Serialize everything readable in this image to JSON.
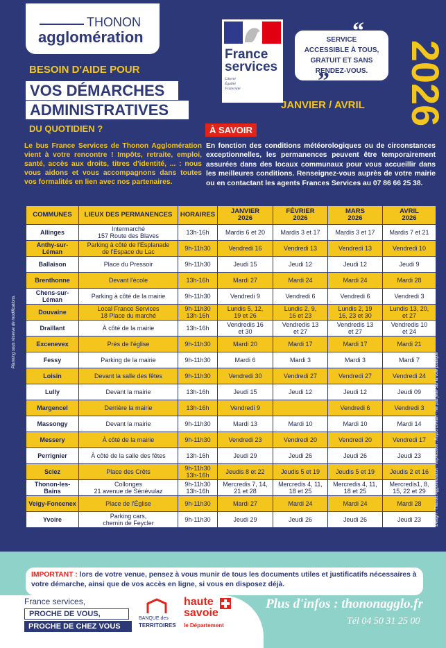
{
  "header": {
    "logo": {
      "line1": "THONON",
      "line2": "agglomération"
    },
    "help": {
      "line1": "BESOIN D'AIDE POUR",
      "line2": "VOS DÉMARCHES",
      "line3": "ADMINISTRATIVES",
      "line4": "DU QUOTIDIEN ?"
    },
    "france_services": {
      "line1": "France",
      "line2": "services",
      "motto": "Liberté\nÉgalité\nFraternité"
    },
    "bubble": "SERVICE\nACCESSIBLE À TOUS,\nGRATUIT ET SANS\nRENDEZ-VOUS.",
    "year": "2026",
    "period": "JANVIER / AVRIL",
    "intro": "Le bus France Services de Thonon Agglomération vient à votre rencontre ! Impôts, retraite, emploi, santé, accès aux droits, titres d'identité, ... : nous vous aidons et vous accompagnons dans toutes vos formalités en lien avec nos partenaires.",
    "notice_title": "À SAVOIR",
    "notice_text": "En fonction des conditions météorologiques ou de circonstances exceptionnelles, les permanences peuvent être temporairement assurées dans des locaux communaux pour vous accueillir dans les meilleures conditions. Renseignez-vous auprès de votre mairie ou en contactant les agents Frances Services au 07 86 66 25 38."
  },
  "table": {
    "headers": [
      "COMMUNES",
      "LIEUX DES PERMANENCES",
      "HORAIRES",
      "JANVIER\n2026",
      "FÉVRIER\n2026",
      "MARS\n2026",
      "AVRIL\n2026"
    ],
    "rows": [
      [
        "Allinges",
        "Intermarché\n157 Route des Blaves",
        "13h-16h",
        "Mardis 6 et 20",
        "Mardis 3 et 17",
        "Mardis 3 et 17",
        "Mardis 7 et 21"
      ],
      [
        "Anthy-sur-Léman",
        "Parking à côté de l'Esplanade\nde l'Espace du Lac",
        "9h-11h30",
        "Vendredi 16",
        "Vendredi 13",
        "Vendredi 13",
        "Vendredi 10"
      ],
      [
        "Ballaison",
        "Place du Pressoir",
        "9h-11h30",
        "Jeudi 15",
        "Jeudi 12",
        "Jeudi 12",
        "Jeudi 9"
      ],
      [
        "Brenthonne",
        "Devant l'école",
        "13h-16h",
        "Mardi 27",
        "Mardi 24",
        "Mardi 24",
        "Mardi 28"
      ],
      [
        "Chens-sur-Léman",
        "Parking à côté de la mairie",
        "9h-11h30",
        "Vendredi 9",
        "Vendredi 6",
        "Vendredi 6",
        "Vendredi 3"
      ],
      [
        "Douvaine",
        "Local France Services\n18 Place du marché",
        "9h-11h30\n13h-16h",
        "Lundis 5, 12,\n19 et 26",
        "Lundis 2, 9,\n16 et 23",
        "Lundis 2, 19\n16, 23 et 30",
        "Lundis 13, 20,\net 27"
      ],
      [
        "Draillant",
        "À côté de la mairie",
        "13h-16h",
        "Vendredis 16\net 30",
        "Vendredis 13\net 27",
        "Vendredis 13\net 27",
        "Vendredis 10\net 24"
      ],
      [
        "Excenevex",
        "Près de l'église",
        "9h-11h30",
        "Mardi 20",
        "Mardi 17",
        "Mardi 17",
        "Mardi 21"
      ],
      [
        "Fessy",
        "Parking de la mairie",
        "9h-11h30",
        "Mardi 6",
        "Mardi 3",
        "Mardi 3",
        "Mardi 7"
      ],
      [
        "Loisin",
        "Devant la salle des fêtes",
        "9h-11h30",
        "Vendredi 30",
        "Vendredi 27",
        "Vendredi 27",
        "Vendredi 24"
      ],
      [
        "Lully",
        "Devant la mairie",
        "13h-16h",
        "Jeudi 15",
        "Jeudi 12",
        "Jeudi 12",
        "Jeudi 09"
      ],
      [
        "Margencel",
        "Derrière la mairie",
        "13h-16h",
        "Vendredi 9",
        null,
        "Vendredi 6",
        "Vendredi 3"
      ],
      [
        "Massongy",
        "Devant la mairie",
        "9h-11h30",
        "Mardi 13",
        "Mardi 10",
        "Mardi 10",
        "Mardi 14"
      ],
      [
        "Messery",
        "À côté de la mairie",
        "9h-11h30",
        "Vendredi 23",
        "Vendredi 20",
        "Vendredi 20",
        "Vendredi 17"
      ],
      [
        "Perrignier",
        "À côté de la salle des fêtes",
        "13h-16h",
        "Jeudi 29",
        "Jeudi 26",
        "Jeudi 26",
        "Jeudi 23"
      ],
      [
        "Sciez",
        "Place des Crêts",
        "9h-11h30\n13h-16h",
        "Jeudis 8 et 22",
        "Jeudis 5 et 19",
        "Jeudis 5 et 19",
        "Jeudis 2 et 16"
      ],
      [
        "Thonon-les-Bains",
        "Collonges\n21 avenue de Sénévulaz",
        "9h-11h30\n13h-16h",
        "Mercredis 7, 14,\n21 et 28",
        "Mercredis 4, 11,\n18 et 25",
        "Mercredis 4, 11,\n18 et 25",
        "Mercredis1, 8,\n15, 22 et 29"
      ],
      [
        "Veigy-Foncenex",
        "Place de l'Église",
        "9h-11h30",
        "Mardi 27",
        "Mardi 24",
        "Mardi 24",
        "Mardi 28"
      ],
      [
        "Yvoire",
        "Parking cars,\nchemin de Feycler",
        "9h-11h30",
        "Jeudi 29",
        "Jeudi 26",
        "Jeudi 26",
        "Jeudi 23"
      ]
    ]
  },
  "side_notes": {
    "left": "Planning sous réserve de modifications.",
    "right": "Design : Thonon Agglomération · Impression : Repro Léman · Ne pas jeter sur la voie publique"
  },
  "footer": {
    "important_label": "IMPORTANT :",
    "important_text": "lors de votre venue, pensez à vous munir de tous les documents utiles et justificatifs nécessaires à votre démarche, ainsi que de vos accès en ligne, si vous en disposez déjà.",
    "slogan": [
      "France services,",
      "PROCHE DE VOUS,",
      "PROCHE DE CHEZ VOUS"
    ],
    "banque": {
      "line1": "BANQUE des",
      "line2": "TERRITOIRES"
    },
    "department": {
      "line1": "haute",
      "line2": "savoie",
      "line3": "le Département"
    },
    "website": "Plus d'infos : thononagglo.fr",
    "phone": "Tél 04 50 31 25 00"
  }
}
